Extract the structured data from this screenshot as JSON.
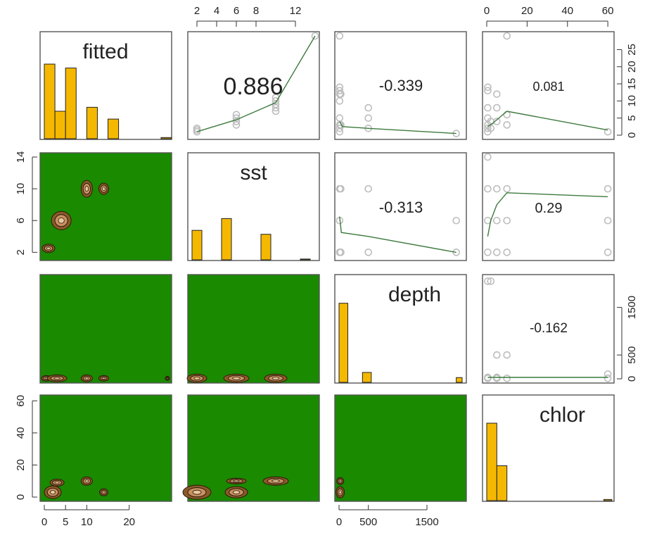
{
  "colors": {
    "histogram_fill": "#f5b800",
    "histogram_stroke": "#222222",
    "density_fill": "#1a8a00",
    "smooth_line": "#3d7a3d",
    "point_stroke": "#bdbdbd",
    "contour_line": "#2a1a0a",
    "contour_warm": "#8a5a2a"
  },
  "chart_data": {
    "type": "scatterplot-matrix",
    "variables": [
      "fitted",
      "sst",
      "depth",
      "chlor"
    ],
    "diagonal_labels": [
      "fitted",
      "sst",
      "depth",
      "chlor"
    ],
    "axis_ticks": {
      "fitted": [
        "0",
        "5",
        "10",
        "15",
        "20",
        "25"
      ],
      "fitted_bottom": [
        "0",
        "5",
        "10",
        "20"
      ],
      "sst_top": [
        "2",
        "4",
        "6",
        "8",
        "12"
      ],
      "sst_left": [
        "2",
        "6",
        "10",
        "14"
      ],
      "depth_right": [
        "0",
        "500",
        "1500"
      ],
      "depth_bottom": [
        "0",
        "500",
        "1500"
      ],
      "chlor_top": [
        "0",
        "20",
        "40",
        "60"
      ],
      "chlor_left": [
        "0",
        "20",
        "40",
        "60"
      ]
    },
    "ranges": {
      "fitted": [
        0,
        29
      ],
      "sst": [
        1.5,
        14
      ],
      "depth": [
        0,
        2100
      ],
      "chlor": [
        0,
        61
      ]
    },
    "correlations": [
      {
        "pair": [
          "fitted",
          "sst"
        ],
        "value": "0.886"
      },
      {
        "pair": [
          "fitted",
          "depth"
        ],
        "value": "-0.339"
      },
      {
        "pair": [
          "fitted",
          "chlor"
        ],
        "value": "0.081"
      },
      {
        "pair": [
          "sst",
          "depth"
        ],
        "value": "-0.313"
      },
      {
        "pair": [
          "sst",
          "chlor"
        ],
        "value": "0.29"
      },
      {
        "pair": [
          "depth",
          "chlor"
        ],
        "value": "-0.162"
      }
    ],
    "histograms": {
      "fitted": {
        "bins": [
          0,
          2.5,
          5,
          7.5,
          10,
          12.5,
          15,
          17.5,
          20,
          22.5,
          25,
          27.5,
          30
        ],
        "counts": [
          19,
          7,
          18,
          0,
          8,
          0,
          5,
          0,
          0,
          0,
          0,
          0.3
        ]
      },
      "sst": {
        "bins": [
          1.5,
          2.5,
          4.5,
          5.5,
          8.5,
          9.5,
          12.5,
          13.5
        ],
        "counts": [
          7.5,
          0,
          10.5,
          0,
          6.5,
          0,
          0.2
        ]
      },
      "depth": {
        "bins": [
          0,
          150,
          300,
          400,
          550,
          1850,
          2000,
          2100
        ],
        "counts": [
          20,
          0,
          0,
          2.5,
          0,
          0,
          1.2
        ]
      },
      "chlor": {
        "bins": [
          0,
          5,
          10,
          15,
          58,
          62
        ],
        "counts": [
          20,
          9,
          0,
          0,
          0.3
        ]
      }
    },
    "scatter": {
      "sst_vs_fitted": [
        [
          2,
          1
        ],
        [
          2,
          1.5
        ],
        [
          2,
          2
        ],
        [
          6,
          3
        ],
        [
          6,
          4
        ],
        [
          6,
          5
        ],
        [
          6,
          6
        ],
        [
          10,
          7
        ],
        [
          10,
          8
        ],
        [
          10,
          9
        ],
        [
          10,
          10
        ],
        [
          10,
          11
        ],
        [
          14,
          29
        ]
      ],
      "depth_vs_fitted": [
        [
          10,
          1
        ],
        [
          10,
          2
        ],
        [
          10,
          3
        ],
        [
          10,
          5
        ],
        [
          10,
          10
        ],
        [
          10,
          12
        ],
        [
          10,
          13
        ],
        [
          10,
          14
        ],
        [
          10,
          29
        ],
        [
          30,
          3
        ],
        [
          30,
          12
        ],
        [
          500,
          2
        ],
        [
          500,
          5
        ],
        [
          500,
          8
        ],
        [
          2000,
          0.5
        ]
      ],
      "chlor_vs_fitted": [
        [
          0.5,
          1
        ],
        [
          0.5,
          2
        ],
        [
          0.5,
          3
        ],
        [
          0.5,
          5
        ],
        [
          0.5,
          8
        ],
        [
          0.5,
          13
        ],
        [
          0.5,
          14
        ],
        [
          2,
          2
        ],
        [
          2,
          4
        ],
        [
          5,
          4
        ],
        [
          5,
          8
        ],
        [
          5,
          12
        ],
        [
          10,
          3
        ],
        [
          10,
          6
        ],
        [
          10,
          29
        ],
        [
          60,
          1
        ]
      ],
      "depth_vs_sst": [
        [
          10,
          2
        ],
        [
          10,
          6
        ],
        [
          10,
          10
        ],
        [
          30,
          2
        ],
        [
          30,
          10
        ],
        [
          500,
          2
        ],
        [
          500,
          10
        ],
        [
          2000,
          2
        ],
        [
          2000,
          6
        ]
      ],
      "chlor_vs_sst": [
        [
          0.5,
          2
        ],
        [
          0.5,
          6
        ],
        [
          0.5,
          10
        ],
        [
          0.5,
          14
        ],
        [
          5,
          2
        ],
        [
          5,
          6
        ],
        [
          5,
          10
        ],
        [
          10,
          2
        ],
        [
          10,
          6
        ],
        [
          10,
          10
        ],
        [
          60,
          2
        ],
        [
          60,
          6
        ],
        [
          60,
          10
        ]
      ],
      "chlor_vs_depth": [
        [
          0.5,
          10
        ],
        [
          0.5,
          30
        ],
        [
          0.5,
          2050
        ],
        [
          2,
          2050
        ],
        [
          5,
          10
        ],
        [
          5,
          30
        ],
        [
          5,
          500
        ],
        [
          10,
          10
        ],
        [
          10,
          500
        ],
        [
          60,
          10
        ],
        [
          60,
          100
        ]
      ]
    },
    "smooth_lines": {
      "sst_vs_fitted": [
        [
          2,
          1
        ],
        [
          6,
          4.5
        ],
        [
          10,
          9.5
        ],
        [
          14,
          29
        ]
      ],
      "depth_vs_fitted": [
        [
          10,
          4
        ],
        [
          60,
          2.5
        ],
        [
          500,
          2
        ],
        [
          2000,
          0.5
        ]
      ],
      "chlor_vs_fitted": [
        [
          0.5,
          2.5
        ],
        [
          3,
          3.5
        ],
        [
          10,
          7
        ],
        [
          60,
          1.5
        ]
      ],
      "depth_vs_sst": [
        [
          10,
          6.5
        ],
        [
          40,
          4.5
        ],
        [
          500,
          4
        ],
        [
          2000,
          2
        ]
      ],
      "chlor_vs_sst": [
        [
          0.5,
          4
        ],
        [
          2,
          6
        ],
        [
          5,
          8
        ],
        [
          10,
          9.5
        ],
        [
          60,
          9
        ]
      ],
      "chlor_vs_depth": [
        [
          0.5,
          30
        ],
        [
          60,
          30
        ]
      ]
    },
    "density_blobs": {
      "sst_vs_fitted": [
        [
          1,
          2.5
        ],
        [
          4,
          6
        ],
        [
          10,
          10
        ],
        [
          14,
          10
        ]
      ],
      "depth_vs_fitted": [
        [
          0.5,
          10
        ],
        [
          3,
          10
        ],
        [
          10,
          10
        ],
        [
          14,
          10
        ],
        [
          29,
          10
        ]
      ],
      "depth_vs_sst": [
        [
          2,
          10
        ],
        [
          6,
          10
        ],
        [
          10,
          10
        ]
      ],
      "chlor_vs_fitted": [
        [
          2,
          3
        ],
        [
          3,
          9
        ],
        [
          10,
          10
        ],
        [
          14,
          3
        ]
      ],
      "chlor_vs_sst": [
        [
          2,
          3
        ],
        [
          6,
          3
        ],
        [
          6,
          10
        ],
        [
          10,
          10
        ]
      ],
      "chlor_vs_depth": [
        [
          20,
          3
        ],
        [
          20,
          10
        ]
      ]
    }
  }
}
